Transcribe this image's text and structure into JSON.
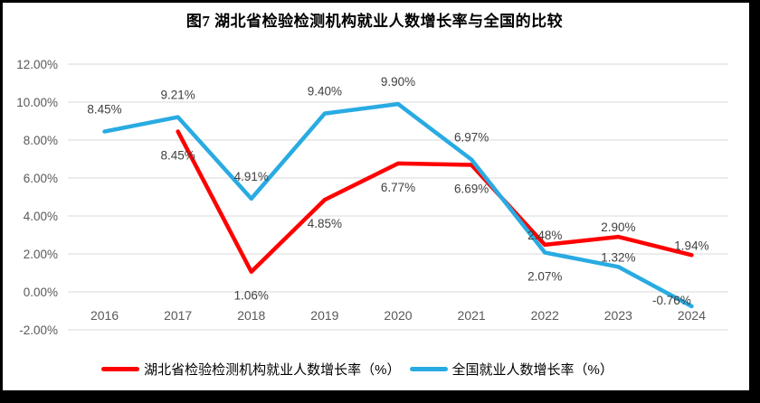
{
  "title": "图7 湖北省检验检测机构就业人数增长率与全国的比较",
  "colors": {
    "background": "#FFFFFF",
    "frame": "#000000",
    "grid": "#D9D9D9",
    "axis_text": "#595959",
    "label_text": "#404040",
    "series_red": "#FF0000",
    "series_blue": "#29ABE2"
  },
  "chart_data": {
    "type": "line",
    "title": "图7 湖北省检验检测机构就业人数增长率与全国的比较",
    "categories": [
      "2016",
      "2017",
      "2018",
      "2019",
      "2020",
      "2021",
      "2022",
      "2023",
      "2024"
    ],
    "y_axis": {
      "ticks": [
        "12.00%",
        "10.00%",
        "8.00%",
        "6.00%",
        "4.00%",
        "2.00%",
        "0.00%",
        "-2.00%"
      ],
      "max": 12,
      "min": -2,
      "step": 2,
      "grid": true
    },
    "legend_position": "bottom",
    "series": [
      {
        "name": "湖北省检验检测机构就业人数增长率（%）",
        "color": "#FF0000",
        "values": [
          null,
          8.45,
          1.06,
          4.85,
          6.77,
          6.69,
          2.48,
          2.9,
          1.94
        ],
        "labels": [
          "",
          "8.45%",
          "1.06%",
          "4.85%",
          "6.77%",
          "6.69%",
          "2.48%",
          "2.90%",
          "1.94%"
        ],
        "label_pos": [
          "",
          "below",
          "below",
          "below",
          "below",
          "below",
          "near-above",
          "near-above",
          "near-above"
        ]
      },
      {
        "name": "全国就业人数增长率（%）",
        "color": "#29ABE2",
        "values": [
          8.45,
          9.21,
          4.91,
          9.4,
          9.9,
          6.97,
          2.07,
          1.32,
          -0.76
        ],
        "labels": [
          "8.45%",
          "9.21%",
          "4.91%",
          "9.40%",
          "9.90%",
          "6.97%",
          "2.07%",
          "1.32%",
          "-0.76%"
        ],
        "label_pos": [
          "above",
          "above",
          "above",
          "above",
          "above",
          "above",
          "below",
          "near-above",
          "above-left"
        ]
      }
    ]
  }
}
